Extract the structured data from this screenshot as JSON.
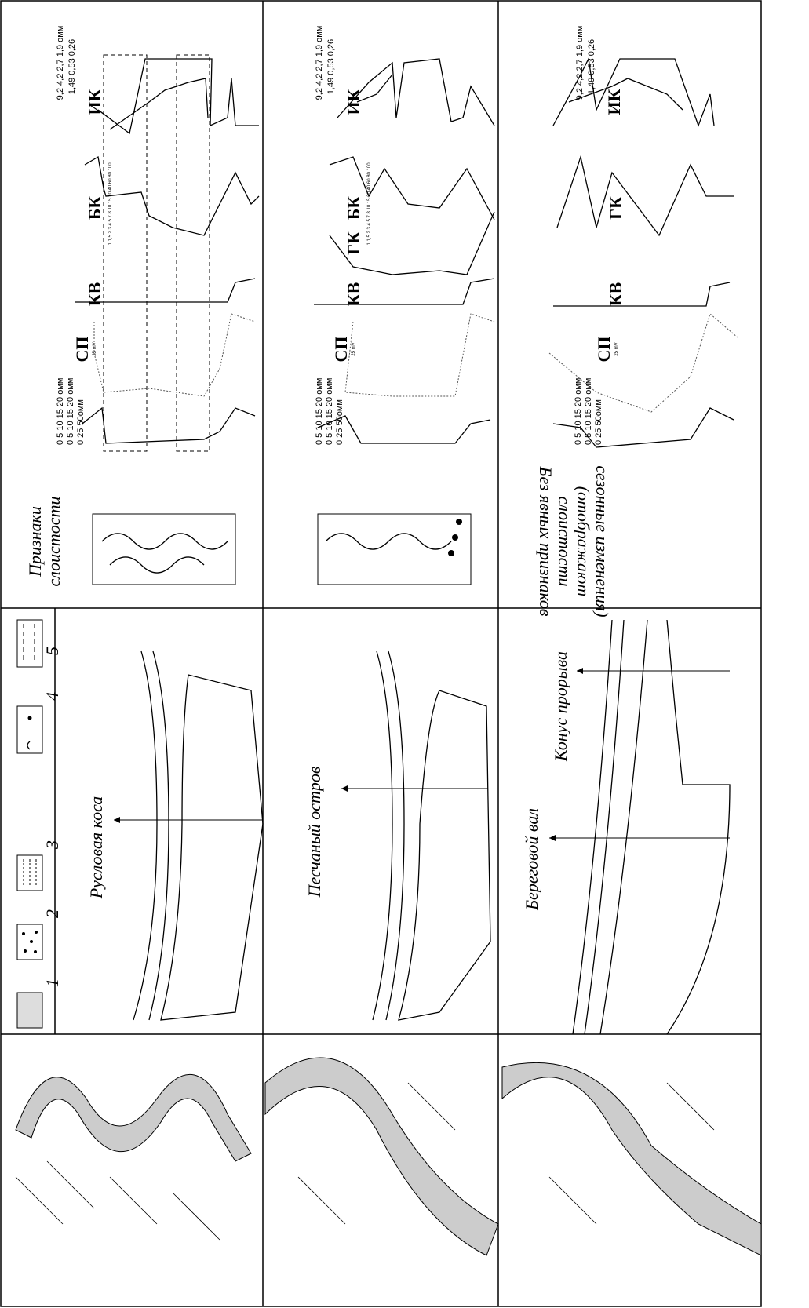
{
  "legend": {
    "items": [
      "1",
      "2",
      "3",
      "4",
      "5"
    ]
  },
  "columns": [
    {
      "logs": {
        "ik": "ИК",
        "ik_scale_top": "9,2  4,2  2,7  1,9 омм",
        "ik_scale_bottom": "1,49  0,53  0,26",
        "bk": "БК",
        "bk_scale": "1 1,5 2 3 4 5 7 8 10 15 20 40 60 80 100",
        "kv": "КВ",
        "sp": "СП",
        "sp_scale": "25 mV",
        "res_scale_1": "0  5  10  15  20 омм",
        "res_scale_2": "0  5  10  15  20 омм",
        "res_scale_3": "0  25  50омм"
      },
      "layering": [
        "Признаки",
        "слоистости"
      ],
      "section_label": "Русловая коса"
    },
    {
      "logs": {
        "ik": "ИК",
        "ik_scale_top": "9,2  4,2  2,7  1,9 омм",
        "ik_scale_bottom": "1,49  0,53  0,26",
        "bk": "БК",
        "gk": "ГК",
        "bk_scale": "1 1,5 2 3 4 5 7 8 10 15 20 40 60 80 100",
        "kv": "КВ",
        "sp": "СП",
        "sp_scale": "25 mV",
        "res_scale_1": "0  5  10  15  20 омм",
        "res_scale_2": "0  5  10  15  20 омм",
        "res_scale_3": "0  25  50омм"
      },
      "section_label": "Песчаный остров"
    },
    {
      "logs": {
        "ik": "ИК",
        "ik_scale_top": "9,2  4,2  2,7  1,9 омм",
        "ik_scale_bottom": "1,49  0,53  0,26",
        "gk": "ГК",
        "kv": "КВ",
        "sp": "СП",
        "sp_scale": "25 mV",
        "res_scale_1": "0  5  10  15  20 омм",
        "res_scale_2": "0  5  10  15  20 омм",
        "res_scale_3": "0  25  50омм"
      },
      "layering": [
        "Без явных признаков",
        "слоистости",
        "(отображают",
        "сезонные изменения)"
      ],
      "section_labels": [
        "Береговой вал",
        "Конус прорыва"
      ]
    }
  ]
}
